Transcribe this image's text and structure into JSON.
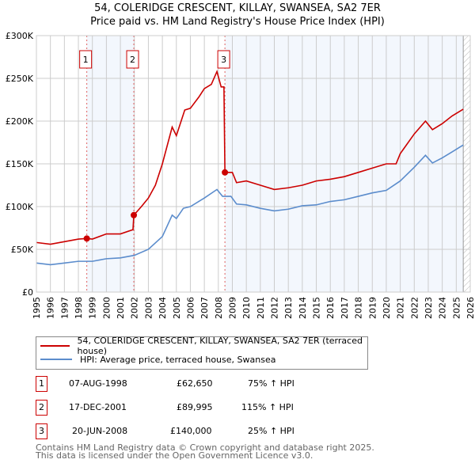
{
  "chart_data": {
    "type": "line",
    "title": "54, COLERIDGE CRESCENT, KILLAY, SWANSEA, SA2 7ER",
    "subtitle": "Price paid vs. HM Land Registry's House Price Index (HPI)",
    "xlim": [
      1995,
      2026
    ],
    "ylim": [
      0,
      300000
    ],
    "x_ticks": [
      "1995",
      "1996",
      "1997",
      "1998",
      "1999",
      "2000",
      "2001",
      "2002",
      "2003",
      "2004",
      "2005",
      "2006",
      "2007",
      "2008",
      "2009",
      "2010",
      "2011",
      "2012",
      "2013",
      "2014",
      "2015",
      "2016",
      "2017",
      "2018",
      "2019",
      "2020",
      "2021",
      "2022",
      "2023",
      "2024",
      "2025",
      "2026"
    ],
    "y_ticks": [
      {
        "v": 0,
        "label": "£0"
      },
      {
        "v": 50000,
        "label": "£50K"
      },
      {
        "v": 100000,
        "label": "£100K"
      },
      {
        "v": 150000,
        "label": "£150K"
      },
      {
        "v": 200000,
        "label": "£200K"
      },
      {
        "v": 250000,
        "label": "£250K"
      },
      {
        "v": 300000,
        "label": "£300K"
      }
    ],
    "grid": true,
    "series": [
      {
        "name": "54, COLERIDGE CRESCENT, KILLAY, SWANSEA, SA2 7ER (terraced house)",
        "color": "#cc0000",
        "points": [
          [
            1995,
            58000
          ],
          [
            1996,
            56000
          ],
          [
            1997,
            59000
          ],
          [
            1998,
            62000
          ],
          [
            1998.6,
            62650
          ],
          [
            1999,
            62000
          ],
          [
            2000,
            68000
          ],
          [
            2001,
            68000
          ],
          [
            2001.9,
            73000
          ],
          [
            2001.96,
            89995
          ],
          [
            2002.5,
            100000
          ],
          [
            2003,
            110000
          ],
          [
            2003.5,
            125000
          ],
          [
            2004,
            150000
          ],
          [
            2004.7,
            193000
          ],
          [
            2005,
            183000
          ],
          [
            2005.6,
            213000
          ],
          [
            2006,
            215000
          ],
          [
            2006.6,
            228000
          ],
          [
            2007,
            238000
          ],
          [
            2007.5,
            243000
          ],
          [
            2007.9,
            258000
          ],
          [
            2008.2,
            240000
          ],
          [
            2008.4,
            240000
          ],
          [
            2008.47,
            140000
          ],
          [
            2009,
            140000
          ],
          [
            2009.3,
            128000
          ],
          [
            2010,
            130000
          ],
          [
            2011,
            125000
          ],
          [
            2012,
            120000
          ],
          [
            2013,
            122000
          ],
          [
            2014,
            125000
          ],
          [
            2015,
            130000
          ],
          [
            2016,
            132000
          ],
          [
            2017,
            135000
          ],
          [
            2018,
            140000
          ],
          [
            2019,
            145000
          ],
          [
            2020,
            150000
          ],
          [
            2020.7,
            150000
          ],
          [
            2021,
            162000
          ],
          [
            2022,
            185000
          ],
          [
            2022.8,
            200000
          ],
          [
            2023.3,
            190000
          ],
          [
            2024,
            197000
          ],
          [
            2024.7,
            206000
          ],
          [
            2025.5,
            214000
          ]
        ]
      },
      {
        "name": "HPI: Average price, terraced house, Swansea",
        "color": "#5b8ccc",
        "points": [
          [
            1995,
            34000
          ],
          [
            1996,
            32000
          ],
          [
            1997,
            34000
          ],
          [
            1998,
            36000
          ],
          [
            1999,
            36000
          ],
          [
            2000,
            39000
          ],
          [
            2001,
            40000
          ],
          [
            2002,
            43000
          ],
          [
            2003,
            50000
          ],
          [
            2004,
            65000
          ],
          [
            2004.7,
            90000
          ],
          [
            2005,
            86000
          ],
          [
            2005.5,
            98000
          ],
          [
            2006,
            100000
          ],
          [
            2007,
            110000
          ],
          [
            2007.9,
            120000
          ],
          [
            2008.3,
            112000
          ],
          [
            2008.9,
            112000
          ],
          [
            2009.3,
            103000
          ],
          [
            2010,
            102000
          ],
          [
            2011,
            98000
          ],
          [
            2012,
            95000
          ],
          [
            2013,
            97000
          ],
          [
            2014,
            101000
          ],
          [
            2015,
            102000
          ],
          [
            2016,
            106000
          ],
          [
            2017,
            108000
          ],
          [
            2018,
            112000
          ],
          [
            2019,
            116000
          ],
          [
            2020,
            119000
          ],
          [
            2021,
            130000
          ],
          [
            2022,
            146000
          ],
          [
            2022.8,
            160000
          ],
          [
            2023.3,
            151000
          ],
          [
            2024,
            157000
          ],
          [
            2024.7,
            164000
          ],
          [
            2025.5,
            172000
          ]
        ]
      }
    ],
    "sales": [
      {
        "n": "1",
        "x": 1998.6,
        "price": 62650,
        "date": "07-AUG-1998",
        "price_label": "£62,650",
        "hpi": "75% ↑ HPI"
      },
      {
        "n": "2",
        "x": 2001.96,
        "price": 89995,
        "date": "17-DEC-2001",
        "price_label": "£89,995",
        "hpi": "115% ↑ HPI"
      },
      {
        "n": "3",
        "x": 2008.47,
        "price": 140000,
        "date": "20-JUN-2008",
        "price_label": "£140,000",
        "hpi": "25% ↑ HPI"
      }
    ],
    "data_end": 2025.5
  },
  "legend": {
    "red": "54, COLERIDGE CRESCENT, KILLAY, SWANSEA, SA2 7ER (terraced house)",
    "blue": "HPI: Average price, terraced house, Swansea"
  },
  "footer": {
    "line1": "Contains HM Land Registry data © Crown copyright and database right 2025.",
    "line2": "This data is licensed under the Open Government Licence v3.0."
  }
}
